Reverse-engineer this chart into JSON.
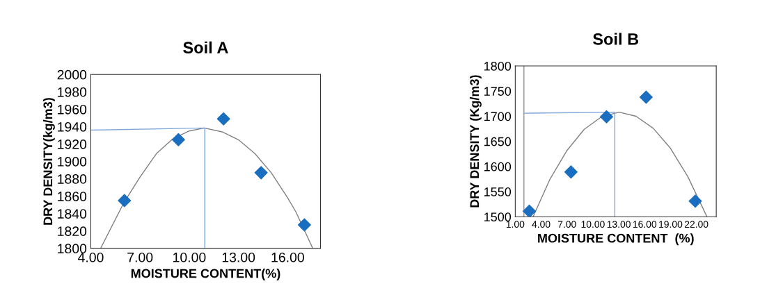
{
  "chart_data": [
    {
      "type": "scatter",
      "title": "Soil A",
      "xlabel": "MOISTURE CONTENT(%)",
      "ylabel": "DRY DENSITY(kg/m3)",
      "xlim": [
        4,
        18
      ],
      "ylim": [
        1800,
        2000
      ],
      "xticks": [
        {
          "value": 4,
          "label": "4.00"
        },
        {
          "value": 7,
          "label": "7.00"
        },
        {
          "value": 10,
          "label": "10.00"
        },
        {
          "value": 13,
          "label": "13.00"
        },
        {
          "value": 16,
          "label": "16.00"
        }
      ],
      "yticks": [
        1800,
        1820,
        1840,
        1860,
        1880,
        1900,
        1920,
        1940,
        1960,
        1980,
        2000
      ],
      "grid": false,
      "legend": false,
      "series": [
        {
          "type": "line",
          "color": "#808080",
          "marker": "none",
          "x": [
            4.6,
            6,
            7,
            8,
            9,
            10,
            10.92,
            12,
            13,
            14,
            15,
            16,
            16.5,
            17.53
          ],
          "values": [
            1800,
            1852,
            1882,
            1909,
            1926,
            1935,
            1938.5,
            1934,
            1925,
            1909,
            1887,
            1858,
            1842,
            1800
          ]
        },
        {
          "type": "line",
          "color": "#7fa7d9",
          "marker": "none",
          "x": [
            4,
            10.95,
            10.95
          ],
          "values": [
            1936,
            1938.5,
            1800
          ]
        },
        {
          "color": "#1a6ec0",
          "marker": "diamond",
          "x": [
            6.05,
            9.34,
            12.09,
            14.38,
            17.02
          ],
          "values": [
            1855,
            1925,
            1949,
            1887,
            1827
          ]
        }
      ]
    },
    {
      "type": "scatter",
      "title": "Soil B",
      "xlabel": "MOISTURE CONTENT  (%)",
      "ylabel": "DRY DENSITY (Kg/m3)",
      "xlim": [
        1,
        24.3
      ],
      "ylim": [
        1500,
        1800
      ],
      "xticks": [
        {
          "value": 1,
          "label": "1.00"
        },
        {
          "value": 4,
          "label": "4.00"
        },
        {
          "value": 7,
          "label": "7.00"
        },
        {
          "value": 10,
          "label": "10.00"
        },
        {
          "value": 13,
          "label": "13.00"
        },
        {
          "value": 16,
          "label": "16.00"
        },
        {
          "value": 19,
          "label": "19.00"
        },
        {
          "value": 22,
          "label": "22.00"
        }
      ],
      "yticks": [
        1500,
        1550,
        1600,
        1650,
        1700,
        1750,
        1800
      ],
      "grid": false,
      "legend": false,
      "ref_lines": [
        {
          "axis": "x",
          "value": 2,
          "color": "#a0a0a0"
        }
      ],
      "series": [
        {
          "type": "line",
          "color": "#808080",
          "marker": "none",
          "x": [
            3.07,
            5,
            7,
            9,
            11,
            13.06,
            15,
            17,
            19,
            21,
            23.22
          ],
          "values": [
            1500,
            1574,
            1632,
            1674,
            1699,
            1708,
            1700,
            1676,
            1636,
            1580,
            1500
          ]
        },
        {
          "type": "line",
          "color": "#7fa7d9",
          "marker": "none",
          "x": [
            1.98,
            12.54,
            12.54
          ],
          "values": [
            1706,
            1708,
            1500
          ]
        },
        {
          "color": "#1a6ec0",
          "marker": "diamond",
          "x": [
            2.63,
            7.46,
            11.58,
            16.17,
            21.87
          ],
          "values": [
            1511,
            1589,
            1699,
            1738,
            1531
          ]
        }
      ]
    }
  ]
}
